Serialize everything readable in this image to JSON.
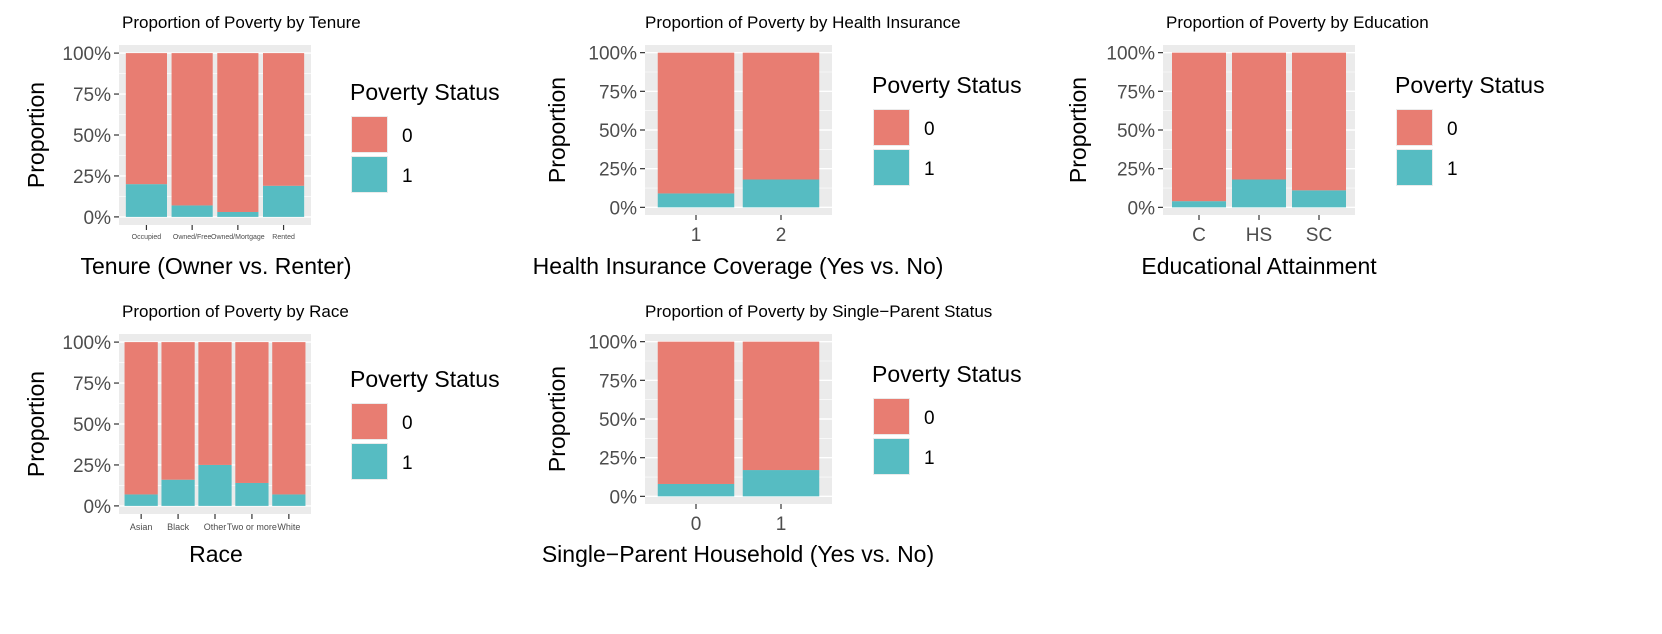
{
  "colors": {
    "status_0": "#E87D72",
    "status_1": "#56BCC2",
    "panel_bg": "#EBEBEB",
    "grid": "#FFFFFF",
    "axis_text": "#4D4D4D",
    "title_text": "#000000"
  },
  "chart_data": [
    {
      "type": "bar",
      "stacked": "proportion",
      "title": "Proportion of Poverty by Tenure",
      "xlabel": "Tenure (Owner vs. Renter)",
      "ylabel": "Proportion",
      "yticks": [
        "0%",
        "25%",
        "50%",
        "75%",
        "100%"
      ],
      "ylim": [
        0,
        1
      ],
      "grid": true,
      "categories": [
        "Occupied",
        "Owned/Free",
        "Owned/Mortgage",
        "Rented"
      ],
      "series": [
        {
          "name": "0",
          "values": [
            0.8,
            0.93,
            0.97,
            0.81
          ]
        },
        {
          "name": "1",
          "values": [
            0.2,
            0.07,
            0.03,
            0.19
          ]
        }
      ],
      "legend": {
        "title": "Poverty Status",
        "entries": [
          "0",
          "1"
        ],
        "position": "right"
      }
    },
    {
      "type": "bar",
      "stacked": "proportion",
      "title": "Proportion of Poverty by Health Insurance",
      "xlabel": "Health Insurance Coverage (Yes vs. No)",
      "ylabel": "Proportion",
      "yticks": [
        "0%",
        "25%",
        "50%",
        "75%",
        "100%"
      ],
      "ylim": [
        0,
        1
      ],
      "grid": true,
      "categories": [
        "1",
        "2"
      ],
      "series": [
        {
          "name": "0",
          "values": [
            0.91,
            0.82
          ]
        },
        {
          "name": "1",
          "values": [
            0.09,
            0.18
          ]
        }
      ],
      "legend": {
        "title": "Poverty Status",
        "entries": [
          "0",
          "1"
        ],
        "position": "right"
      }
    },
    {
      "type": "bar",
      "stacked": "proportion",
      "title": "Proportion of Poverty by Education",
      "xlabel": "Educational Attainment",
      "ylabel": "Proportion",
      "yticks": [
        "0%",
        "25%",
        "50%",
        "75%",
        "100%"
      ],
      "ylim": [
        0,
        1
      ],
      "grid": true,
      "categories": [
        "C",
        "HS",
        "SC"
      ],
      "series": [
        {
          "name": "0",
          "values": [
            0.96,
            0.82,
            0.89
          ]
        },
        {
          "name": "1",
          "values": [
            0.04,
            0.18,
            0.11
          ]
        }
      ],
      "legend": {
        "title": "Poverty Status",
        "entries": [
          "0",
          "1"
        ],
        "position": "right"
      }
    },
    {
      "type": "bar",
      "stacked": "proportion",
      "title": "Proportion of Poverty by Race",
      "xlabel": "Race",
      "ylabel": "Proportion",
      "yticks": [
        "0%",
        "25%",
        "50%",
        "75%",
        "100%"
      ],
      "ylim": [
        0,
        1
      ],
      "grid": true,
      "categories": [
        "Asian",
        "Black",
        "Other",
        "Two or more",
        "White"
      ],
      "series": [
        {
          "name": "0",
          "values": [
            0.93,
            0.84,
            0.75,
            0.86,
            0.93
          ]
        },
        {
          "name": "1",
          "values": [
            0.07,
            0.16,
            0.25,
            0.14,
            0.07
          ]
        }
      ],
      "legend": {
        "title": "Poverty Status",
        "entries": [
          "0",
          "1"
        ],
        "position": "right"
      }
    },
    {
      "type": "bar",
      "stacked": "proportion",
      "title": "Proportion of Poverty by Single−Parent Status",
      "xlabel": "Single−Parent Household (Yes vs. No)",
      "ylabel": "Proportion",
      "yticks": [
        "0%",
        "25%",
        "50%",
        "75%",
        "100%"
      ],
      "ylim": [
        0,
        1
      ],
      "grid": true,
      "categories": [
        "0",
        "1"
      ],
      "series": [
        {
          "name": "0",
          "values": [
            0.92,
            0.83
          ]
        },
        {
          "name": "1",
          "values": [
            0.08,
            0.17
          ]
        }
      ],
      "legend": {
        "title": "Poverty Status",
        "entries": [
          "0",
          "1"
        ],
        "position": "right"
      }
    }
  ]
}
